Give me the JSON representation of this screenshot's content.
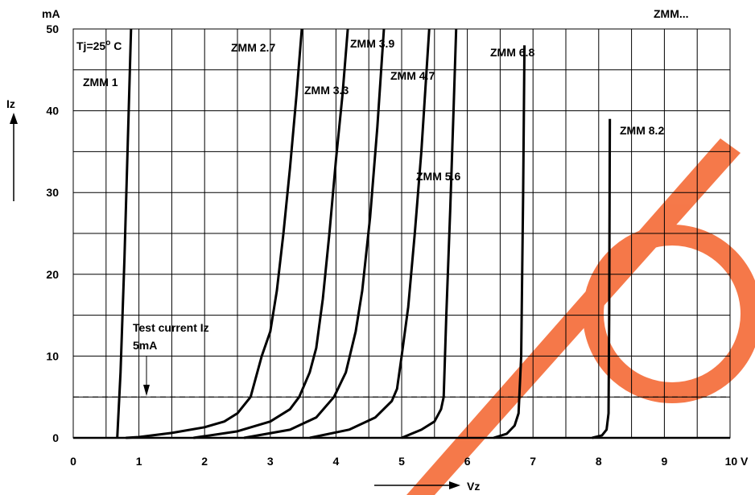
{
  "chart_data": {
    "type": "line",
    "title": "ZMM...",
    "y_unit": "mA",
    "y_label": "Iz",
    "x_label": "Vz",
    "condition": "Tj=25",
    "condition_sup": "o",
    "condition_unit": " C",
    "annotation": [
      "Test current Iz",
      "5mA"
    ],
    "test_current": 5,
    "color": "#000000",
    "grid": true,
    "xlim": [
      0,
      10
    ],
    "ylim": [
      0,
      50
    ],
    "xticks": [
      0,
      1,
      2,
      3,
      4,
      5,
      6,
      7,
      8,
      9,
      {
        "value": 10,
        "label": "10 V"
      }
    ],
    "minor_xticks": [
      0.5,
      1.5,
      2.5,
      3.5,
      4.5,
      5.5,
      6.5,
      7.5,
      8.5,
      9.5
    ],
    "yticks": [
      0,
      10,
      20,
      30,
      40,
      50
    ],
    "minor_yticks": [
      5,
      15,
      25,
      35,
      45
    ],
    "series": [
      {
        "name": "ZMM 1",
        "x": [
          0.67,
          0.72,
          0.78,
          0.83,
          0.88
        ],
        "values": [
          0,
          8,
          22,
          36,
          50
        ]
      },
      {
        "name": "ZMM 2.7",
        "x": [
          0.8,
          1.0,
          1.5,
          2.0,
          2.3,
          2.5,
          2.7,
          2.87,
          3.0,
          3.1,
          3.2,
          3.3,
          3.4,
          3.48
        ],
        "values": [
          0,
          0.1,
          0.6,
          1.3,
          2,
          3,
          5,
          10,
          13,
          18,
          25,
          33,
          42,
          50
        ]
      },
      {
        "name": "ZMM 3.3",
        "x": [
          1.83,
          2.5,
          3.0,
          3.3,
          3.44,
          3.6,
          3.7,
          3.8,
          3.9,
          4.0,
          4.1,
          4.18
        ],
        "values": [
          0,
          0.8,
          2,
          3.5,
          5,
          8,
          11,
          17,
          25,
          34,
          42,
          50
        ]
      },
      {
        "name": "ZMM 3.9",
        "x": [
          2.6,
          3.3,
          3.7,
          3.97,
          4.15,
          4.3,
          4.4,
          4.52,
          4.63,
          4.73
        ],
        "values": [
          0,
          1,
          2.5,
          5,
          8,
          13,
          18,
          27,
          38,
          50
        ]
      },
      {
        "name": "ZMM 4.7",
        "x": [
          3.6,
          4.2,
          4.6,
          4.85,
          4.93,
          5.0,
          5.1,
          5.2,
          5.3,
          5.42
        ],
        "values": [
          0,
          1,
          2.5,
          4.5,
          6,
          10,
          16,
          25,
          35,
          50
        ]
      },
      {
        "name": "ZMM 5.6",
        "x": [
          5.0,
          5.3,
          5.5,
          5.6,
          5.64,
          5.68,
          5.74,
          5.79,
          5.83
        ],
        "values": [
          0,
          1,
          2,
          3.5,
          5,
          15,
          28,
          40,
          50
        ]
      },
      {
        "name": "ZMM 6.8",
        "x": [
          6.4,
          6.6,
          6.72,
          6.78,
          6.82,
          6.85,
          6.87
        ],
        "values": [
          0,
          0.5,
          1.5,
          3,
          10,
          30,
          48
        ]
      },
      {
        "name": "ZMM 8.2",
        "x": [
          7.9,
          8.05,
          8.12,
          8.15,
          8.16,
          8.17
        ],
        "values": [
          0,
          0.3,
          1,
          3,
          15,
          39
        ]
      }
    ]
  }
}
